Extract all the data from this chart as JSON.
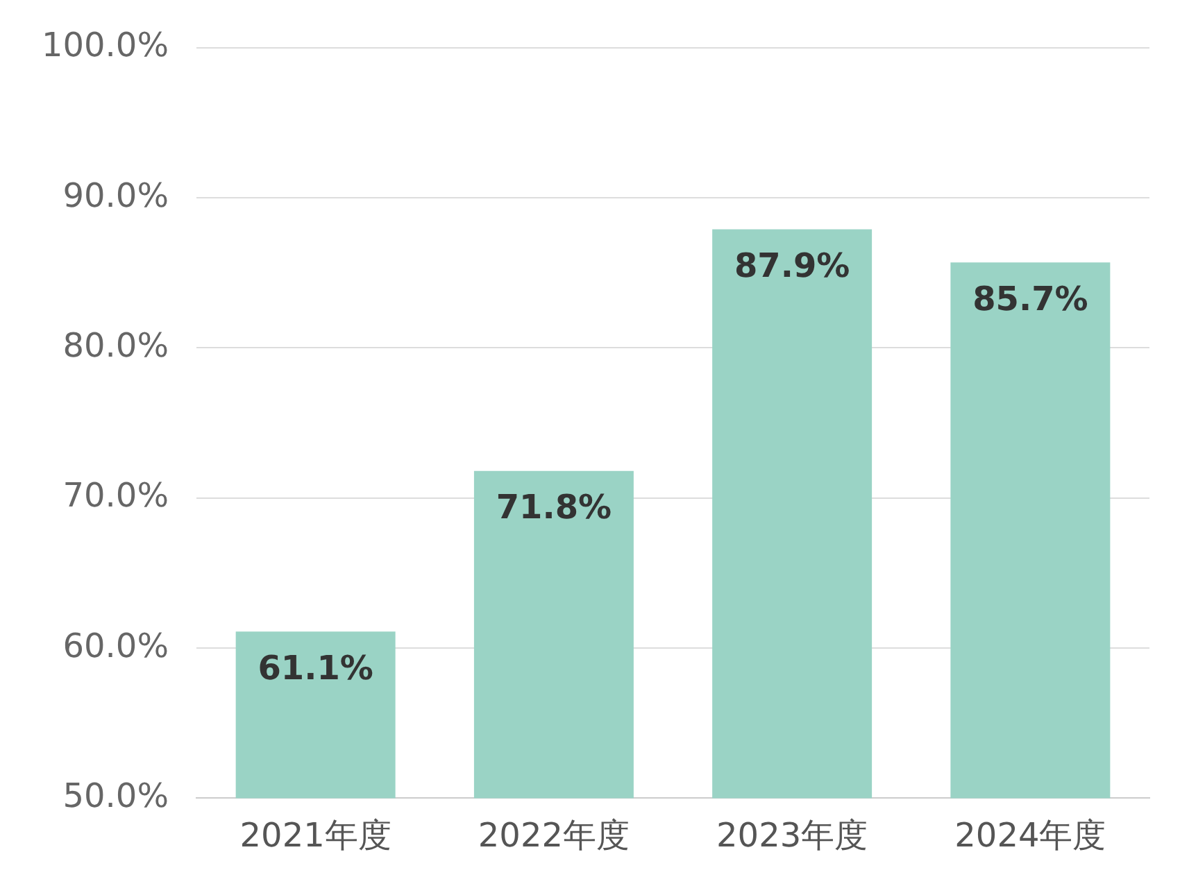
{
  "chart_data": {
    "type": "bar",
    "categories": [
      "2021年度",
      "2022年度",
      "2023年度",
      "2024年度"
    ],
    "values": [
      61.1,
      71.8,
      87.9,
      85.7
    ],
    "color": "#9ad3c5",
    "value_labels": [
      "61.1%",
      "71.8%",
      "87.9%",
      "85.7%"
    ],
    "ylim": [
      50,
      100
    ],
    "yticks": [
      {
        "value": 50,
        "label": "50.0%"
      },
      {
        "value": 60,
        "label": "60.0%"
      },
      {
        "value": 70,
        "label": "70.0%"
      },
      {
        "value": 80,
        "label": "80.0%"
      },
      {
        "value": 90,
        "label": "90.0%"
      },
      {
        "value": 100,
        "label": "100.0%"
      }
    ],
    "grid": "y",
    "legend": false
  }
}
